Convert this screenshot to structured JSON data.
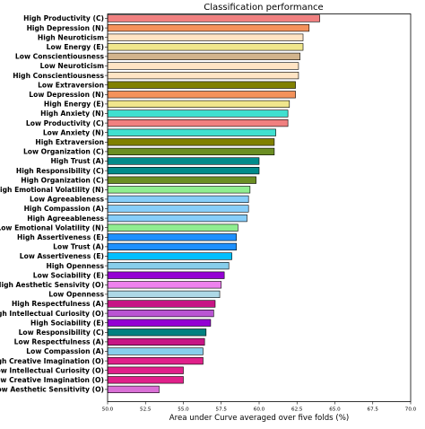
{
  "chart_data": {
    "type": "bar",
    "orientation": "horizontal",
    "title": "Classification performance",
    "xlabel": "Area under Curve averaged over five folds (%)",
    "ylabel": "",
    "xlim": [
      50.0,
      70.0
    ],
    "xticks": [
      "50.0",
      "52.5",
      "55.0",
      "57.5",
      "60.0",
      "62.5",
      "65.0",
      "67.5",
      "70.0"
    ],
    "grid": false,
    "categories": [
      "High Productivity (C)",
      "High Depression (N)",
      "High Neuroticism",
      "Low Energy (E)",
      "Low Conscientiousness",
      "Low Neuroticism",
      "High Conscientiousness",
      "Low Extraversion",
      "Low Depression (N)",
      "High Energy (E)",
      "High Anxiety (N)",
      "Low Productivity (C)",
      "Low Anxiety (N)",
      "High Extraversion",
      "Low Organization (C)",
      "High Trust (A)",
      "High Responsibility (C)",
      "High Organization (C)",
      "High Emotional Volatility (N)",
      "Low Agreeableness",
      "High Compassion (A)",
      "High Agreeableness",
      "Low Emotional Volatility (N)",
      "High Assertiveness (E)",
      "Low Trust (A)",
      "Low Assertiveness (E)",
      "High Openness",
      "Low Sociability (E)",
      "High Aesthetic Sensivity (O)",
      "Low Openness",
      "High Respectfulness (A)",
      "High Intellectual Curiosity (O)",
      "High Sociability (E)",
      "Low Responsibility (C)",
      "Low Respectfulness (A)",
      "Low Compassion (A)",
      "High Creative Imagination (O)",
      "Low Intellectual Curiosity (O)",
      "Low Creative Imagination (O)",
      "Low Aesthetic Sensitivity (O)"
    ],
    "values": [
      64.0,
      63.3,
      62.9,
      62.9,
      62.7,
      62.6,
      62.6,
      62.4,
      62.4,
      62.0,
      61.9,
      61.9,
      61.1,
      61.0,
      61.0,
      60.0,
      60.0,
      59.8,
      59.4,
      59.3,
      59.3,
      59.2,
      58.6,
      58.5,
      58.5,
      58.2,
      58.0,
      57.7,
      57.5,
      57.4,
      57.1,
      57.0,
      56.8,
      56.5,
      56.4,
      56.3,
      56.3,
      55.0,
      55.0,
      53.4
    ],
    "colors": [
      "#f08080",
      "#f4925b",
      "#ffe4c4",
      "#f0e68c",
      "#d2b48c",
      "#ffe4c4",
      "#ffe4c4",
      "#808000",
      "#f4925b",
      "#f0e68c",
      "#40e0d0",
      "#f08080",
      "#40e0d0",
      "#808000",
      "#6b8e23",
      "#008b8b",
      "#008b8b",
      "#6b8e23",
      "#90ee90",
      "#87cefa",
      "#87cefa",
      "#87cefa",
      "#90ee90",
      "#1e90ff",
      "#1e90ff",
      "#00bfff",
      "#87ceeb",
      "#9400d3",
      "#ee82ee",
      "#add8e6",
      "#c71585",
      "#ba55d3",
      "#9400d3",
      "#008080",
      "#c71585",
      "#87ceeb",
      "#e0218a",
      "#e0218a",
      "#e0218a",
      "#da70d6"
    ]
  }
}
